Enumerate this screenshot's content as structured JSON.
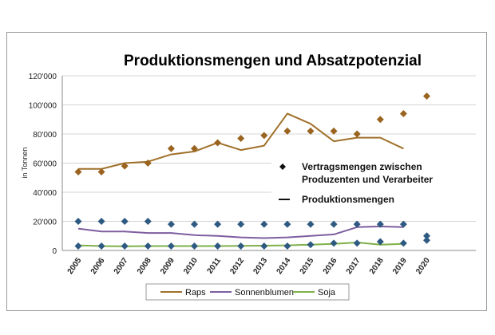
{
  "chart_data": {
    "type": "line",
    "title": "Produktionsmengen und Absatzpotenzial",
    "ylabel": "in Tonnen",
    "xlabel": "",
    "ylim": [
      0,
      120000
    ],
    "yticks": [
      0,
      20000,
      40000,
      60000,
      80000,
      100000,
      120000
    ],
    "ytick_labels": [
      "0",
      "20'000",
      "40'000",
      "60'000",
      "80'000",
      "100'000",
      "120'000"
    ],
    "categories": [
      "2005",
      "2006",
      "2007",
      "2008",
      "2009",
      "2010",
      "2011",
      "2012",
      "2013",
      "2014",
      "2015",
      "2016",
      "2017",
      "2018",
      "2019",
      "2020"
    ],
    "series": [
      {
        "name": "Raps",
        "color": "#a0702a",
        "production": [
          56000,
          56000,
          60000,
          61000,
          66000,
          68000,
          74000,
          69000,
          72000,
          94000,
          87000,
          75000,
          77500,
          77500,
          70000,
          null
        ],
        "contract": [
          54000,
          54000,
          58000,
          60000,
          70000,
          70000,
          74000,
          77000,
          79000,
          82000,
          82000,
          82000,
          80000,
          90000,
          94000,
          106000
        ]
      },
      {
        "name": "Sonnenblumen",
        "color": "#7e5ea0",
        "production": [
          15000,
          13000,
          13000,
          12000,
          12000,
          10500,
          10000,
          9000,
          8500,
          9000,
          10000,
          11000,
          16000,
          16500,
          16000,
          null
        ],
        "contract": [
          20000,
          20000,
          20000,
          20000,
          18000,
          18000,
          18000,
          18000,
          18000,
          18000,
          18000,
          18000,
          18000,
          18000,
          18000,
          10000
        ]
      },
      {
        "name": "Soja",
        "color": "#7fb04a",
        "production": [
          3500,
          3000,
          2800,
          3000,
          3000,
          3000,
          3000,
          3200,
          3300,
          3500,
          4000,
          4500,
          5500,
          4000,
          4500,
          null
        ],
        "contract": [
          3000,
          3000,
          3000,
          3000,
          3000,
          3000,
          3000,
          3000,
          3000,
          3000,
          4000,
          5000,
          5000,
          6000,
          5000,
          7000
        ]
      }
    ],
    "inset_legend": {
      "marker_label": "Vertragsmengen zwischen Produzenten und Verarbeiter",
      "marker_label_lines": [
        "Vertragsmengen zwischen",
        "Produzenten und Verarbeiter"
      ],
      "line_label": "Produktionsmengen"
    },
    "marker_color": "#2e5a82",
    "grid": true
  }
}
